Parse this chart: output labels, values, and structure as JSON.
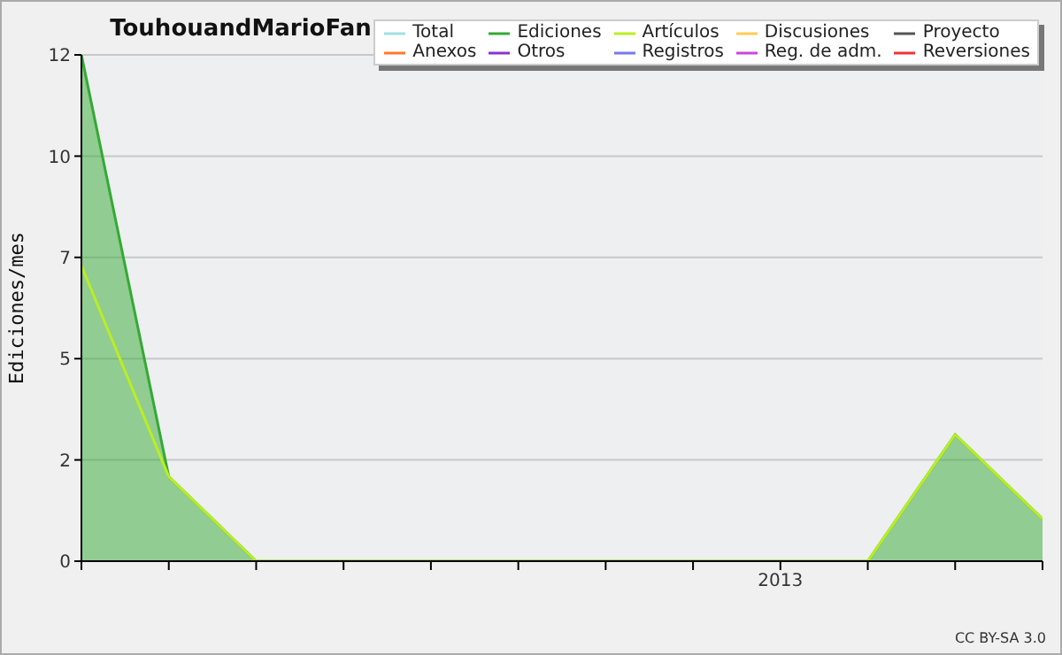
{
  "chart_data": {
    "type": "area",
    "title": "TouhouandMarioFan",
    "ylabel": "Ediciones/mes",
    "categories": [
      null,
      null,
      null,
      null,
      null,
      null,
      null,
      null,
      "2013",
      null,
      null,
      null
    ],
    "series": [
      {
        "name": "Total",
        "color": "#a0e0e0",
        "type": "line",
        "values": [
          null,
          null,
          null,
          null,
          null,
          null,
          null,
          null,
          null,
          null,
          null,
          null
        ]
      },
      {
        "name": "Ediciones",
        "color": "#33aa33",
        "values": [
          12,
          2,
          0,
          0,
          0,
          0,
          0,
          0,
          0,
          0,
          3,
          1
        ]
      },
      {
        "name": "Artículos",
        "color": "#bbee22",
        "type": "line",
        "values": [
          7,
          2,
          0,
          0,
          0,
          0,
          0,
          0,
          0,
          0,
          3,
          1
        ]
      },
      {
        "name": "Discusiones",
        "color": "#ffcc55",
        "type": "line",
        "values": [
          null,
          null,
          null,
          null,
          null,
          null,
          null,
          null,
          null,
          null,
          null,
          null
        ]
      },
      {
        "name": "Proyecto",
        "color": "#555555",
        "type": "line",
        "values": [
          null,
          null,
          null,
          null,
          null,
          null,
          null,
          null,
          null,
          null,
          null,
          null
        ]
      },
      {
        "name": "Anexos",
        "color": "#ff7733",
        "type": "line",
        "values": [
          null,
          null,
          null,
          null,
          null,
          null,
          null,
          null,
          null,
          null,
          null,
          null
        ]
      },
      {
        "name": "Otros",
        "color": "#8833cc",
        "type": "line",
        "values": [
          null,
          null,
          null,
          null,
          null,
          null,
          null,
          null,
          null,
          null,
          null,
          null
        ]
      },
      {
        "name": "Registros",
        "color": "#7777ee",
        "type": "line",
        "values": [
          null,
          null,
          null,
          null,
          null,
          null,
          null,
          null,
          null,
          null,
          null,
          null
        ]
      },
      {
        "name": "Reg. de adm.",
        "color": "#cc44dd",
        "type": "line",
        "values": [
          null,
          null,
          null,
          null,
          null,
          null,
          null,
          null,
          null,
          null,
          null,
          null
        ]
      },
      {
        "name": "Reversiones",
        "color": "#ee3333",
        "type": "line",
        "values": [
          null,
          null,
          null,
          null,
          null,
          null,
          null,
          null,
          null,
          null,
          null,
          null
        ]
      }
    ],
    "ylim": [
      0,
      12
    ],
    "yticks": [
      0,
      {
        "value": 2.4,
        "label": "2"
      },
      {
        "value": 4.8,
        "label": "5"
      },
      {
        "value": 7.2,
        "label": "7"
      },
      {
        "value": 9.6,
        "label": "10"
      },
      12
    ],
    "grid": "y",
    "legend": "top right",
    "marker": "none",
    "annotations": [
      "CC BY-SA 3.0"
    ]
  }
}
